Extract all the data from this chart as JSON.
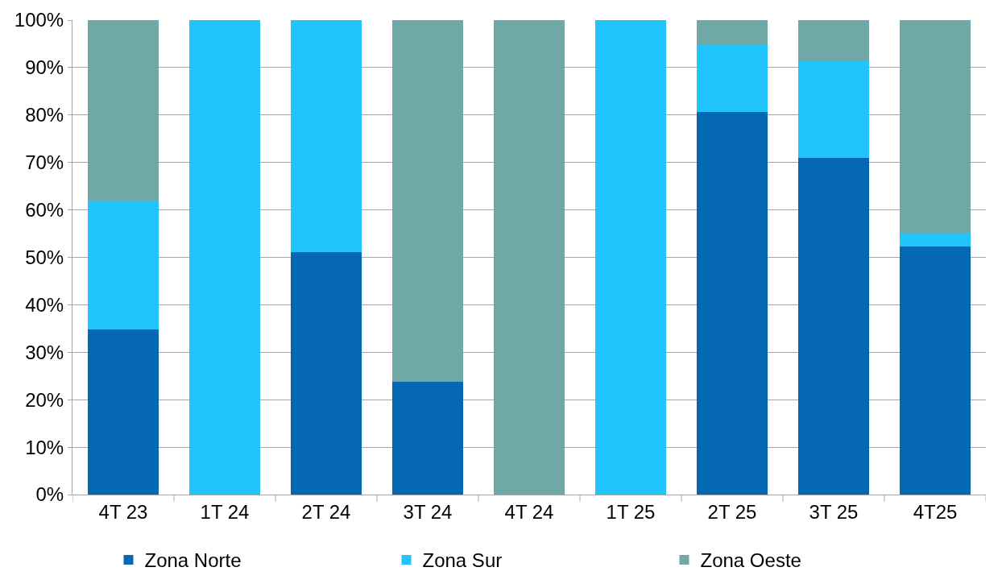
{
  "chart_data": {
    "type": "bar",
    "stacked": true,
    "categories": [
      "4T 23",
      "1T 24",
      "2T 24",
      "3T 24",
      "4T 24",
      "1T 25",
      "2T 25",
      "3T 25",
      "4T25"
    ],
    "series": [
      {
        "name": "Zona Norte",
        "color": "#0568b4",
        "values": [
          34.8,
          0,
          51.1,
          23.7,
          0,
          0,
          80.6,
          70.9,
          52.3
        ]
      },
      {
        "name": "Zona Sur",
        "color": "#22c4fe",
        "values": [
          27.2,
          100,
          48.9,
          0,
          0,
          100,
          14.3,
          20.6,
          2.7
        ]
      },
      {
        "name": "Zona Oeste",
        "color": "#70a8a8",
        "values": [
          38.0,
          0,
          0,
          76.3,
          100,
          0,
          5.1,
          8.5,
          45.0
        ]
      }
    ],
    "ylim": [
      0,
      100
    ],
    "yticks": [
      {
        "value": 0,
        "label": "0%"
      },
      {
        "value": 10,
        "label": "10%"
      },
      {
        "value": 20,
        "label": "20%"
      },
      {
        "value": 30,
        "label": "30%"
      },
      {
        "value": 40,
        "label": "40%"
      },
      {
        "value": 50,
        "label": "50%"
      },
      {
        "value": 60,
        "label": "60%"
      },
      {
        "value": 70,
        "label": "70%"
      },
      {
        "value": 80,
        "label": "80%"
      },
      {
        "value": 90,
        "label": "90%"
      },
      {
        "value": 100,
        "label": "100%"
      }
    ],
    "grid": "y",
    "legend": "bottom"
  }
}
